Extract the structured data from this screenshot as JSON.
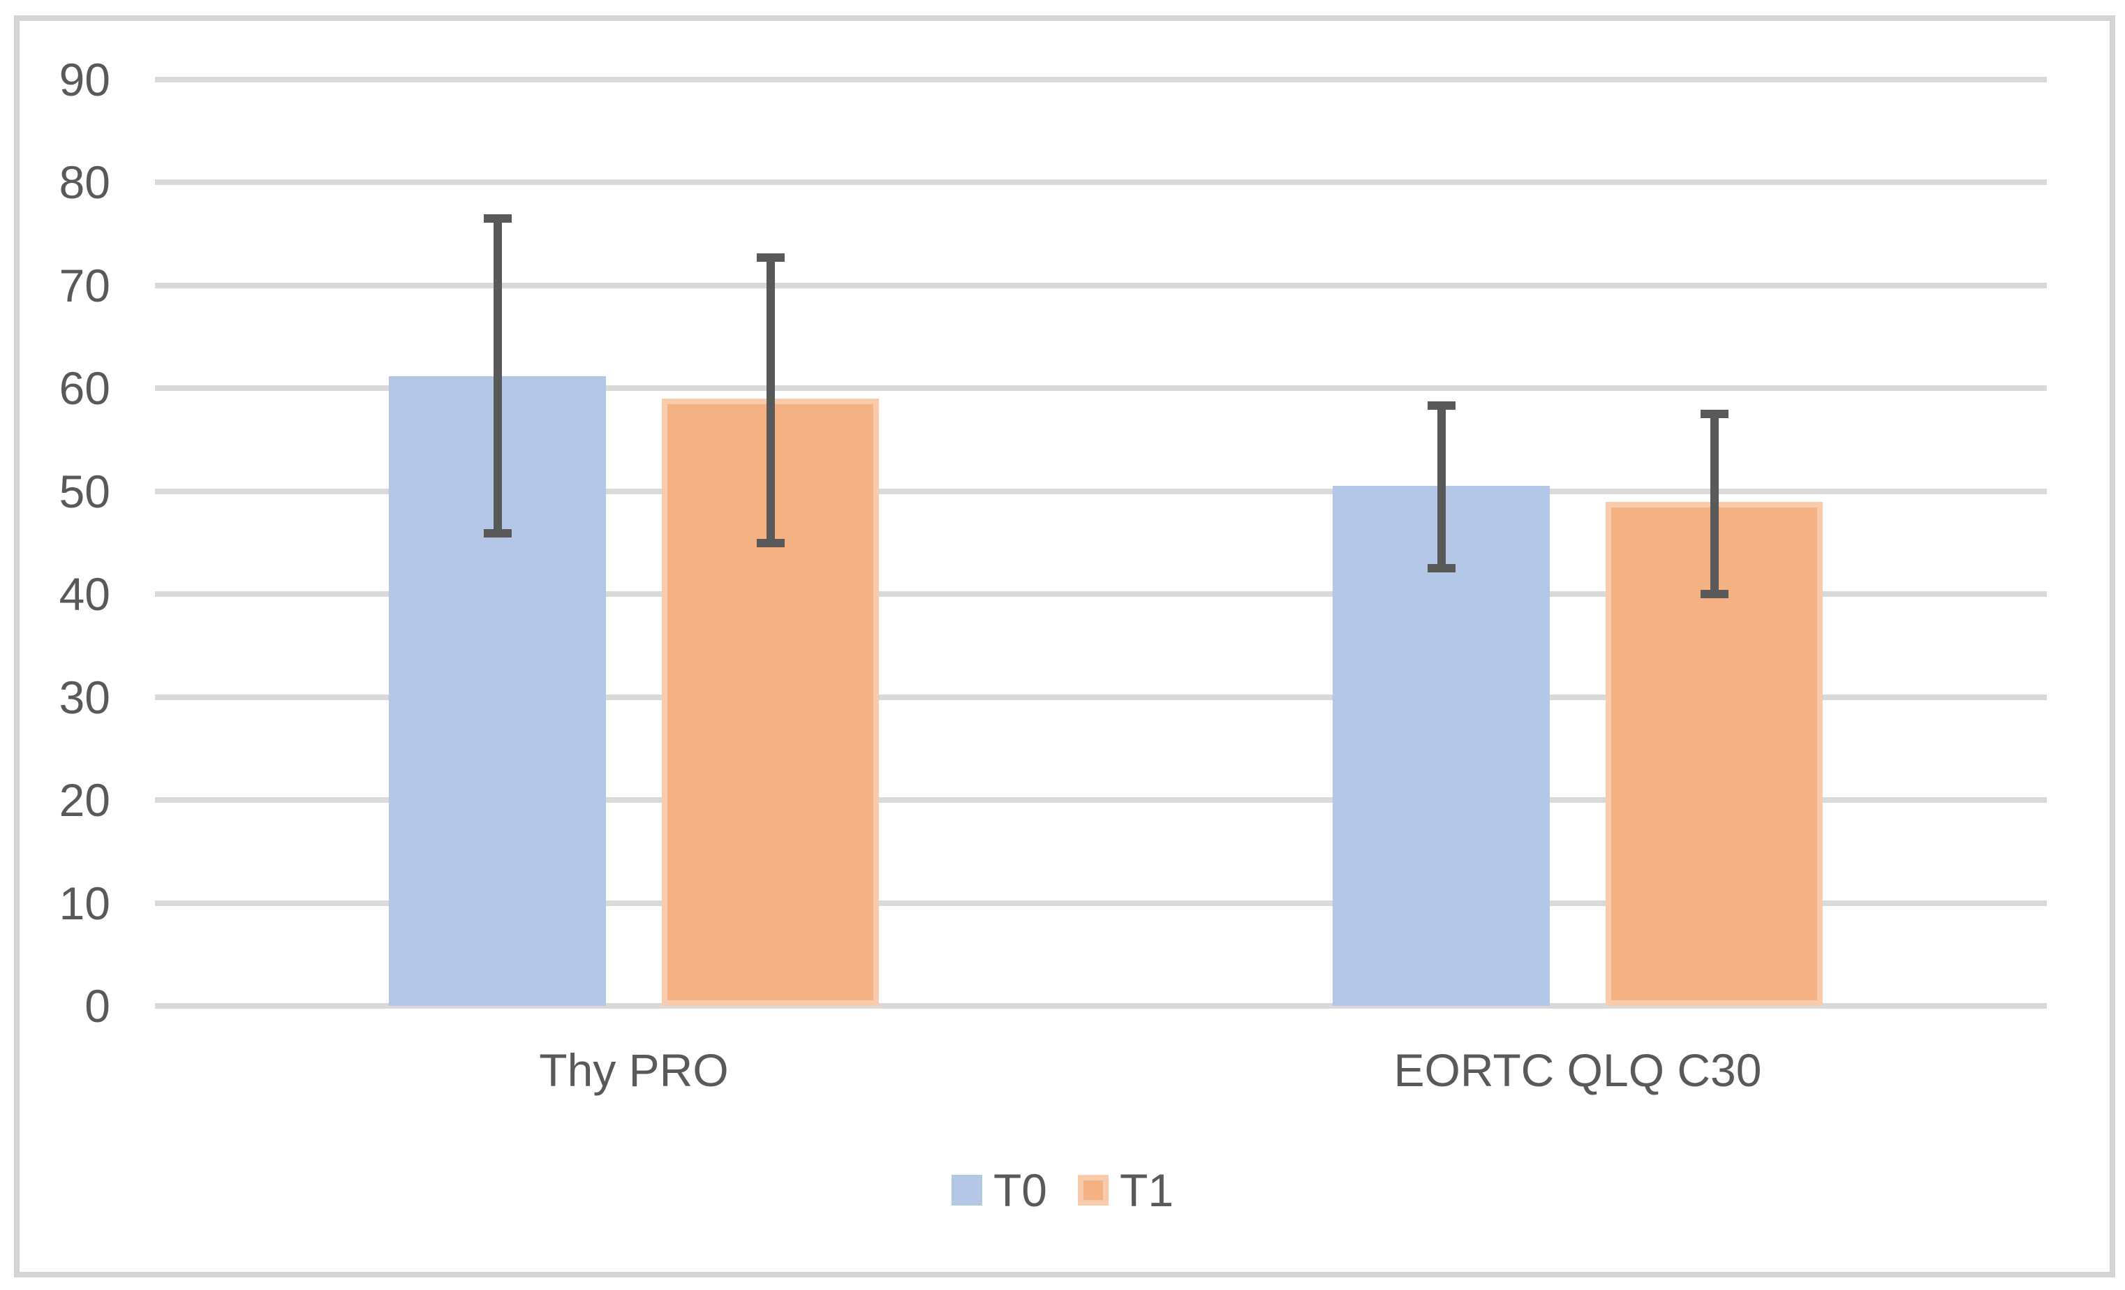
{
  "chart_data": {
    "type": "bar",
    "title": "",
    "xlabel": "",
    "ylabel": "",
    "categories": [
      "Thy PRO",
      "EORTC QLQ C30"
    ],
    "series": [
      {
        "name": "T0",
        "color": "#b4c7e7",
        "values": [
          61.2,
          50.5
        ],
        "error_upper": [
          76.5,
          58.3
        ],
        "error_lower": [
          45.9,
          42.5
        ]
      },
      {
        "name": "T1",
        "color": "#f4b183",
        "border_color": "#f8cbad",
        "values": [
          59.0,
          49.0
        ],
        "error_upper": [
          72.7,
          57.5
        ],
        "error_lower": [
          45.0,
          40.0
        ]
      }
    ],
    "ylim": [
      0,
      90
    ],
    "ytick_step": 10,
    "yticks": [
      0,
      10,
      20,
      30,
      40,
      50,
      60,
      70,
      80,
      90
    ],
    "grid": true,
    "gridline_color": "#d9d9d9",
    "error_bar_color": "#595959",
    "text_color": "#595959",
    "legend_position": "bottom",
    "legend_labels": [
      "T0",
      "T1"
    ]
  },
  "figure": {
    "background": "#ffffff",
    "border_color": "#d4d4d4"
  }
}
